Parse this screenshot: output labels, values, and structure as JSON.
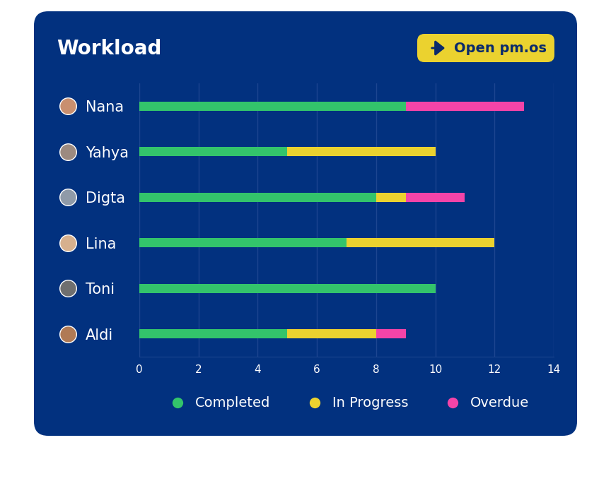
{
  "chart_data": {
    "type": "bar",
    "title": "Workload",
    "orientation": "horizontal",
    "stacked": true,
    "categories": [
      "Nana",
      "Yahya",
      "Digta",
      "Lina",
      "Toni",
      "Aldi"
    ],
    "series": [
      {
        "name": "Completed",
        "color": "#33c46b",
        "values": [
          9,
          5,
          8,
          7,
          10,
          5
        ]
      },
      {
        "name": "In Progress",
        "color": "#ebd22f",
        "values": [
          0,
          5,
          1,
          5,
          0,
          3
        ]
      },
      {
        "name": "Overdue",
        "color": "#f444a8",
        "values": [
          4,
          0,
          2,
          0,
          0,
          1
        ]
      }
    ],
    "xlim": [
      0,
      14
    ],
    "xticks": [
      0,
      2,
      4,
      6,
      8,
      10,
      12,
      14
    ],
    "grid": true,
    "legend": "lower center"
  },
  "button": {
    "label": "Open pm.os"
  }
}
